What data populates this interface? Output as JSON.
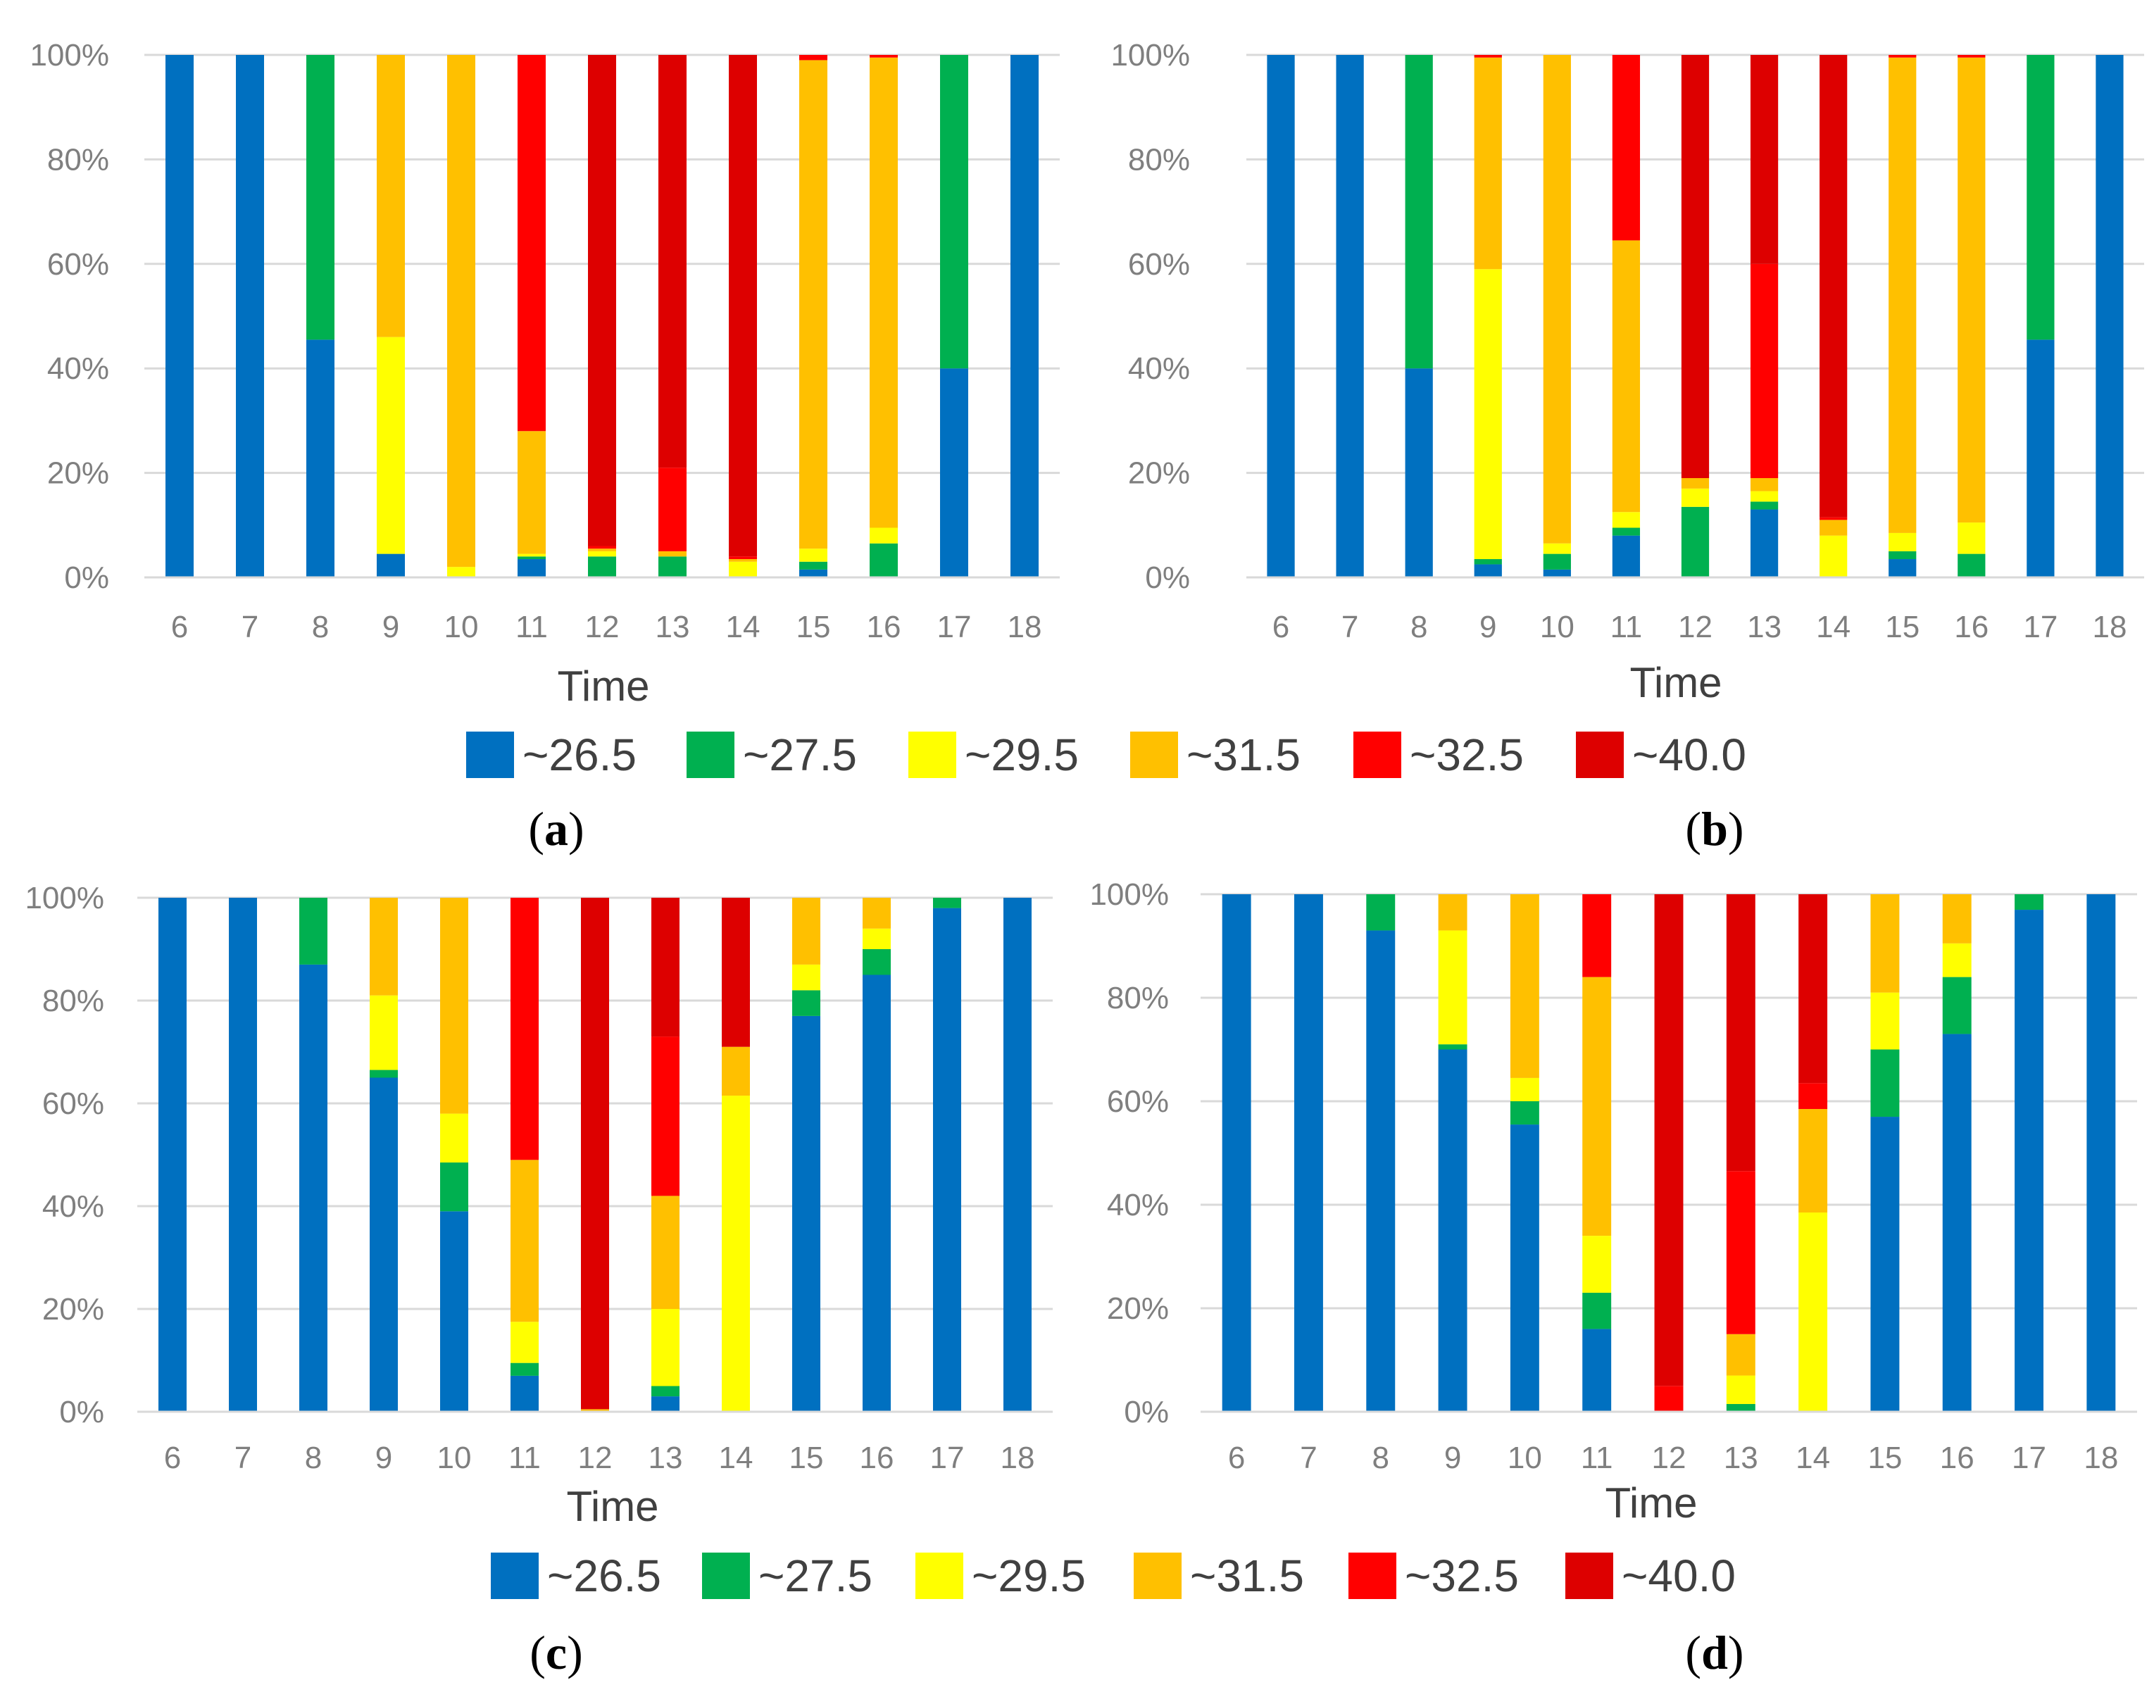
{
  "figure": {
    "legend_order": [
      "~26.5",
      "~27.5",
      "~29.5",
      "~31.5",
      "~32.5",
      "~40.0"
    ],
    "colors": {
      "~26.5": "#0070c0",
      "~27.5": "#00b050",
      "~29.5": "#ffff00",
      "~31.5": "#ffc000",
      "~32.5": "#ff0000",
      "~40.0": "#dd0000"
    },
    "gridline_color": "#d9d9d9",
    "axis_color": "#d9d9d9"
  },
  "chart_data": [
    {
      "panel": "a",
      "panel_label": {
        "open": "(",
        "letter": "a",
        "close": ")"
      },
      "type": "bar",
      "stacked": true,
      "normalized": true,
      "xlabel": "Time",
      "ylabel": "",
      "ylim": [
        0,
        100
      ],
      "ytick_labels": [
        "0%",
        "20%",
        "40%",
        "60%",
        "80%",
        "100%"
      ],
      "categories": [
        "6",
        "7",
        "8",
        "9",
        "10",
        "11",
        "12",
        "13",
        "14",
        "15",
        "16",
        "17",
        "18"
      ],
      "series": [
        {
          "name": "~26.5",
          "values": [
            100,
            100,
            45.5,
            4.5,
            0,
            3.5,
            0,
            0,
            0,
            1.5,
            0,
            40,
            100
          ]
        },
        {
          "name": "~27.5",
          "values": [
            0,
            0,
            54.5,
            0,
            0,
            0.5,
            4,
            4,
            0,
            1.5,
            6.5,
            60,
            0
          ]
        },
        {
          "name": "~29.5",
          "values": [
            0,
            0,
            0,
            41.5,
            2,
            0.5,
            1,
            0,
            3,
            2.5,
            3,
            0,
            0
          ]
        },
        {
          "name": "~31.5",
          "values": [
            0,
            0,
            0,
            54,
            98,
            23.5,
            0.5,
            1,
            0.5,
            93.5,
            90,
            0,
            0
          ]
        },
        {
          "name": "~32.5",
          "values": [
            0,
            0,
            0,
            0,
            0,
            72,
            0.5,
            16,
            0.5,
            1,
            0.5,
            0,
            0
          ]
        },
        {
          "name": "~40.0",
          "values": [
            0,
            0,
            0,
            0,
            0,
            0,
            94,
            79,
            96,
            0,
            0,
            0,
            0
          ]
        }
      ]
    },
    {
      "panel": "b",
      "panel_label": {
        "open": "(",
        "letter": "b",
        "close": ")"
      },
      "type": "bar",
      "stacked": true,
      "normalized": true,
      "xlabel": "Time",
      "ylabel": "",
      "ylim": [
        0,
        100
      ],
      "ytick_labels": [
        "0%",
        "20%",
        "40%",
        "60%",
        "80%",
        "100%"
      ],
      "categories": [
        "6",
        "7",
        "8",
        "9",
        "10",
        "11",
        "12",
        "13",
        "14",
        "15",
        "16",
        "17",
        "18"
      ],
      "series": [
        {
          "name": "~26.5",
          "values": [
            100,
            100,
            40,
            2.5,
            1.5,
            8,
            0,
            13,
            0,
            3.5,
            0,
            45.5,
            100
          ]
        },
        {
          "name": "~27.5",
          "values": [
            0,
            0,
            60,
            1,
            3,
            1.5,
            13.5,
            1.5,
            0,
            1.5,
            4.5,
            54.5,
            0
          ]
        },
        {
          "name": "~29.5",
          "values": [
            0,
            0,
            0,
            55.5,
            2,
            3,
            3.5,
            2,
            8,
            3.5,
            6,
            0,
            0
          ]
        },
        {
          "name": "~31.5",
          "values": [
            0,
            0,
            0,
            40.5,
            93.5,
            52,
            2,
            2.5,
            3,
            91,
            89,
            0,
            0
          ]
        },
        {
          "name": "~32.5",
          "values": [
            0,
            0,
            0,
            0.5,
            0,
            35.5,
            0,
            41,
            0.5,
            0.5,
            0.5,
            0,
            0
          ]
        },
        {
          "name": "~40.0",
          "values": [
            0,
            0,
            0,
            0,
            0,
            0,
            81,
            40,
            88.5,
            0,
            0,
            0,
            0
          ]
        }
      ]
    },
    {
      "panel": "c",
      "panel_label": {
        "open": "(",
        "letter": "c",
        "close": ")"
      },
      "type": "bar",
      "stacked": true,
      "normalized": true,
      "xlabel": "Time",
      "ylabel": "",
      "ylim": [
        0,
        100
      ],
      "ytick_labels": [
        "0%",
        "20%",
        "40%",
        "60%",
        "80%",
        "100%"
      ],
      "categories": [
        "6",
        "7",
        "8",
        "9",
        "10",
        "11",
        "12",
        "13",
        "14",
        "15",
        "16",
        "17",
        "18"
      ],
      "series": [
        {
          "name": "~26.5",
          "values": [
            100,
            100,
            87,
            65,
            39,
            7,
            0,
            3,
            0,
            77,
            85,
            98,
            100
          ]
        },
        {
          "name": "~27.5",
          "values": [
            0,
            0,
            13,
            1.5,
            9.5,
            2.5,
            0,
            2,
            0,
            5,
            5,
            2,
            0
          ]
        },
        {
          "name": "~29.5",
          "values": [
            0,
            0,
            0,
            14.5,
            9.5,
            8,
            0,
            15,
            61.5,
            5,
            4,
            0,
            0
          ]
        },
        {
          "name": "~31.5",
          "values": [
            0,
            0,
            0,
            19,
            42,
            31.5,
            0.5,
            22,
            9.5,
            13,
            6,
            0,
            0
          ]
        },
        {
          "name": "~32.5",
          "values": [
            0,
            0,
            0,
            0,
            0,
            51,
            0,
            31,
            0,
            0,
            0,
            0,
            0
          ]
        },
        {
          "name": "~40.0",
          "values": [
            0,
            0,
            0,
            0,
            0,
            0,
            99.5,
            27,
            29,
            0,
            0,
            0,
            0
          ]
        }
      ]
    },
    {
      "panel": "d",
      "panel_label": {
        "open": "(",
        "letter": "d",
        "close": ")"
      },
      "type": "bar",
      "stacked": true,
      "normalized": true,
      "xlabel": "Time",
      "ylabel": "",
      "ylim": [
        0,
        100
      ],
      "ytick_labels": [
        "0%",
        "20%",
        "40%",
        "60%",
        "80%",
        "100%"
      ],
      "categories": [
        "6",
        "7",
        "8",
        "9",
        "10",
        "11",
        "12",
        "13",
        "14",
        "15",
        "16",
        "17",
        "18"
      ],
      "series": [
        {
          "name": "~26.5",
          "values": [
            100,
            100,
            93,
            70,
            55.5,
            16,
            0,
            0,
            0,
            57,
            73,
            97,
            100
          ]
        },
        {
          "name": "~27.5",
          "values": [
            0,
            0,
            7,
            1,
            4.5,
            7,
            0,
            1.5,
            0,
            13,
            11,
            3,
            0
          ]
        },
        {
          "name": "~29.5",
          "values": [
            0,
            0,
            0,
            22,
            4.5,
            11,
            0,
            5.5,
            38.5,
            11,
            6.5,
            0,
            0
          ]
        },
        {
          "name": "~31.5",
          "values": [
            0,
            0,
            0,
            7,
            35.5,
            50,
            0,
            8,
            20,
            19,
            9.5,
            0,
            0
          ]
        },
        {
          "name": "~32.5",
          "values": [
            0,
            0,
            0,
            0,
            0,
            16,
            5,
            31.5,
            5,
            0,
            0,
            0,
            0
          ]
        },
        {
          "name": "~40.0",
          "values": [
            0,
            0,
            0,
            0,
            0,
            0,
            95,
            53.5,
            36.5,
            0,
            0,
            0,
            0
          ]
        }
      ]
    }
  ]
}
